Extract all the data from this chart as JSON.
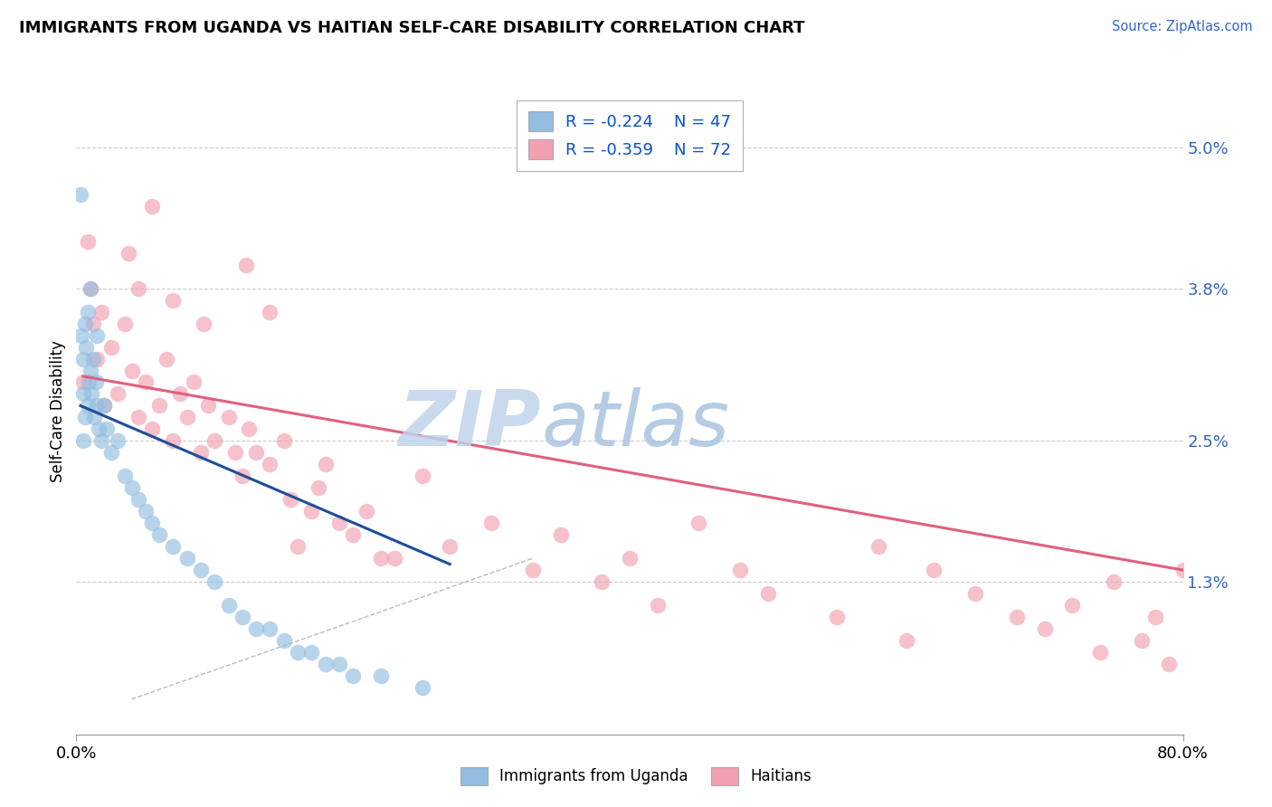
{
  "title": "IMMIGRANTS FROM UGANDA VS HAITIAN SELF-CARE DISABILITY CORRELATION CHART",
  "source": "Source: ZipAtlas.com",
  "ylabel": "Self-Care Disability",
  "xlim": [
    0,
    80
  ],
  "ylim": [
    0.0,
    5.5
  ],
  "ytick_vals": [
    1.3,
    2.5,
    3.8,
    5.0
  ],
  "ytick_labels": [
    "1.3%",
    "2.5%",
    "3.8%",
    "5.0%"
  ],
  "xtick_vals": [
    0,
    80
  ],
  "xtick_labels": [
    "0.0%",
    "80.0%"
  ],
  "legend_r1": "R = -0.224",
  "legend_n1": "N = 47",
  "legend_r2": "R = -0.359",
  "legend_n2": "N = 72",
  "color_blue": "#92BDE0",
  "color_pink": "#F2A0B0",
  "color_blue_line": "#1F4E99",
  "color_pink_line": "#E06080",
  "watermark": "ZIPatlas",
  "watermark_color": "#C5D8EE",
  "label1": "Immigrants from Uganda",
  "label2": "Haitians",
  "blue_x": [
    0.3,
    0.4,
    0.5,
    0.5,
    0.5,
    0.6,
    0.6,
    0.7,
    0.8,
    0.8,
    0.9,
    1.0,
    1.0,
    1.1,
    1.2,
    1.3,
    1.4,
    1.5,
    1.5,
    1.6,
    1.8,
    2.0,
    2.2,
    2.5,
    3.0,
    3.5,
    4.0,
    4.5,
    5.0,
    5.5,
    6.0,
    7.0,
    8.0,
    9.0,
    10.0,
    11.0,
    12.0,
    13.0,
    14.0,
    15.0,
    16.0,
    17.0,
    18.0,
    19.0,
    20.0,
    22.0,
    25.0
  ],
  "blue_y": [
    4.6,
    3.4,
    3.2,
    2.9,
    2.5,
    3.5,
    2.7,
    3.3,
    3.6,
    2.8,
    3.0,
    3.8,
    3.1,
    2.9,
    3.2,
    2.7,
    3.0,
    3.4,
    2.8,
    2.6,
    2.5,
    2.8,
    2.6,
    2.4,
    2.5,
    2.2,
    2.1,
    2.0,
    1.9,
    1.8,
    1.7,
    1.6,
    1.5,
    1.4,
    1.3,
    1.1,
    1.0,
    0.9,
    0.9,
    0.8,
    0.7,
    0.7,
    0.6,
    0.6,
    0.5,
    0.5,
    0.4
  ],
  "pink_x": [
    0.5,
    0.8,
    1.0,
    1.2,
    1.5,
    1.8,
    2.0,
    2.5,
    3.0,
    3.5,
    4.0,
    4.5,
    5.0,
    5.5,
    6.0,
    6.5,
    7.0,
    7.5,
    8.0,
    8.5,
    9.0,
    9.5,
    10.0,
    11.0,
    11.5,
    12.0,
    12.5,
    13.0,
    14.0,
    15.0,
    15.5,
    16.0,
    17.0,
    17.5,
    18.0,
    19.0,
    20.0,
    21.0,
    22.0,
    23.0,
    25.0,
    27.0,
    30.0,
    33.0,
    35.0,
    38.0,
    40.0,
    42.0,
    45.0,
    48.0,
    50.0,
    55.0,
    58.0,
    60.0,
    62.0,
    65.0,
    68.0,
    70.0,
    72.0,
    74.0,
    75.0,
    77.0,
    78.0,
    79.0,
    80.0,
    3.8,
    4.5,
    5.5,
    9.2,
    12.3,
    7.0,
    14.0
  ],
  "pink_y": [
    3.0,
    4.2,
    3.8,
    3.5,
    3.2,
    3.6,
    2.8,
    3.3,
    2.9,
    3.5,
    3.1,
    2.7,
    3.0,
    2.6,
    2.8,
    3.2,
    2.5,
    2.9,
    2.7,
    3.0,
    2.4,
    2.8,
    2.5,
    2.7,
    2.4,
    2.2,
    2.6,
    2.4,
    2.3,
    2.5,
    2.0,
    1.6,
    1.9,
    2.1,
    2.3,
    1.8,
    1.7,
    1.9,
    1.5,
    1.5,
    2.2,
    1.6,
    1.8,
    1.4,
    1.7,
    1.3,
    1.5,
    1.1,
    1.8,
    1.4,
    1.2,
    1.0,
    1.6,
    0.8,
    1.4,
    1.2,
    1.0,
    0.9,
    1.1,
    0.7,
    1.3,
    0.8,
    1.0,
    0.6,
    1.4,
    4.1,
    3.8,
    4.5,
    3.5,
    4.0,
    3.7,
    3.6
  ],
  "blue_line_x": [
    0.3,
    27.0
  ],
  "blue_line_y": [
    2.8,
    1.45
  ],
  "pink_line_x": [
    0.5,
    80.0
  ],
  "pink_line_y": [
    3.05,
    1.4
  ],
  "dash_line_x": [
    5.0,
    32.0
  ],
  "dash_line_y": [
    0.5,
    1.3
  ]
}
